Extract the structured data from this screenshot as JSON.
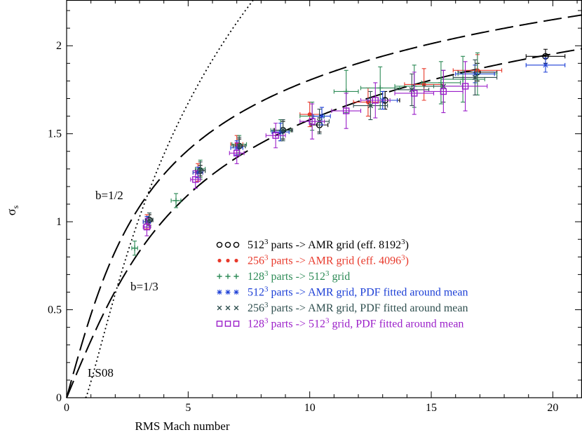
{
  "chart_data": {
    "type": "scatter",
    "xlabel": "RMS Mach number",
    "ylabel": "σ",
    "ylabel_sub": "s",
    "xlim": [
      0,
      21.2
    ],
    "ylim": [
      0,
      2.26
    ],
    "xticks": [
      0,
      5,
      10,
      15,
      20
    ],
    "yticks": [
      0,
      0.5,
      1,
      1.5,
      2
    ],
    "curves": [
      {
        "name": "b=1/2",
        "label": "b=1/2",
        "b": 0.5,
        "style": "long-dash"
      },
      {
        "name": "b=1/3",
        "label": "b=1/3",
        "b": 0.3333,
        "style": "long-dash"
      },
      {
        "name": "LS08",
        "label": "LS08",
        "style": "dotted"
      }
    ],
    "legend": {
      "placement": "center-right",
      "entries": [
        {
          "marker": "circle",
          "color": "#000000",
          "pre": "512",
          "sup": "3",
          "post": " parts -> AMR grid (eff. 8192",
          "sup2": "3",
          "post2": ")"
        },
        {
          "marker": "dot",
          "color": "#e8392b",
          "pre": "256",
          "sup": "3",
          "post": " parts -> AMR grid (eff. 4096",
          "sup2": "3",
          "post2": ")"
        },
        {
          "marker": "plus",
          "color": "#2e8b57",
          "pre": "128",
          "sup": "3",
          "post": " parts -> 512",
          "sup2": "3",
          "post2": " grid"
        },
        {
          "marker": "asterisk",
          "color": "#1c3fd6",
          "pre": "512",
          "sup": "3",
          "post": " parts -> AMR grid, PDF fitted around mean",
          "sup2": "",
          "post2": ""
        },
        {
          "marker": "cross",
          "color": "#2f4f4f",
          "pre": "256",
          "sup": "3",
          "post": " parts -> AMR grid, PDF fitted around mean",
          "sup2": "",
          "post2": ""
        },
        {
          "marker": "square",
          "color": "#9b1fc9",
          "pre": "128",
          "sup": "3",
          "post": " parts -> 512",
          "sup2": "3",
          "post2": " grid, PDF fitted around mean"
        }
      ]
    },
    "series": [
      {
        "name": "512^3 parts -> AMR grid (eff. 8192^3)",
        "marker": "circle",
        "color": "#000000",
        "points": [
          {
            "x": 3.4,
            "y": 1.01,
            "xerr": 0.15,
            "yerr": 0.03
          },
          {
            "x": 5.5,
            "y": 1.29,
            "xerr": 0.2,
            "yerr": 0.03
          },
          {
            "x": 7.1,
            "y": 1.43,
            "xerr": 0.25,
            "yerr": 0.04
          },
          {
            "x": 8.9,
            "y": 1.52,
            "xerr": 0.35,
            "yerr": 0.05
          },
          {
            "x": 10.4,
            "y": 1.55,
            "xerr": 0.35,
            "yerr": 0.04
          },
          {
            "x": 13.1,
            "y": 1.69,
            "xerr": 0.6,
            "yerr": 0.05
          },
          {
            "x": 16.9,
            "y": 1.85,
            "xerr": 0.8,
            "yerr": 0.05
          },
          {
            "x": 19.7,
            "y": 1.94,
            "xerr": 0.8,
            "yerr": 0.04
          }
        ]
      },
      {
        "name": "256^3 parts -> AMR grid (eff. 4096^3)",
        "marker": "dot",
        "color": "#e8392b",
        "points": [
          {
            "x": 3.3,
            "y": 1.0,
            "xerr": 0.15,
            "yerr": 0.04
          },
          {
            "x": 5.4,
            "y": 1.28,
            "xerr": 0.2,
            "yerr": 0.05
          },
          {
            "x": 7.0,
            "y": 1.44,
            "xerr": 0.25,
            "yerr": 0.05
          },
          {
            "x": 10.0,
            "y": 1.61,
            "xerr": 0.4,
            "yerr": 0.07
          },
          {
            "x": 12.4,
            "y": 1.68,
            "xerr": 0.6,
            "yerr": 0.08
          },
          {
            "x": 14.7,
            "y": 1.78,
            "xerr": 0.8,
            "yerr": 0.09
          },
          {
            "x": 16.9,
            "y": 1.86,
            "xerr": 1.0,
            "yerr": 0.09
          }
        ]
      },
      {
        "name": "128^3 parts -> 512^3 grid",
        "marker": "plus",
        "color": "#2e8b57",
        "points": [
          {
            "x": 2.8,
            "y": 0.85,
            "xerr": 0.12,
            "yerr": 0.04
          },
          {
            "x": 4.5,
            "y": 1.12,
            "xerr": 0.2,
            "yerr": 0.04
          },
          {
            "x": 5.5,
            "y": 1.3,
            "xerr": 0.2,
            "yerr": 0.05
          },
          {
            "x": 7.1,
            "y": 1.44,
            "xerr": 0.3,
            "yerr": 0.05
          },
          {
            "x": 8.8,
            "y": 1.52,
            "xerr": 0.4,
            "yerr": 0.06
          },
          {
            "x": 10.1,
            "y": 1.6,
            "xerr": 0.5,
            "yerr": 0.08
          },
          {
            "x": 11.5,
            "y": 1.74,
            "xerr": 0.5,
            "yerr": 0.12
          },
          {
            "x": 12.9,
            "y": 1.76,
            "xerr": 0.8,
            "yerr": 0.12
          },
          {
            "x": 14.3,
            "y": 1.77,
            "xerr": 0.8,
            "yerr": 0.12
          },
          {
            "x": 15.4,
            "y": 1.79,
            "xerr": 0.8,
            "yerr": 0.12
          },
          {
            "x": 16.3,
            "y": 1.81,
            "xerr": 0.9,
            "yerr": 0.13
          },
          {
            "x": 16.9,
            "y": 1.84,
            "xerr": 0.8,
            "yerr": 0.12
          }
        ]
      },
      {
        "name": "512^3 parts -> AMR grid, PDF fitted around mean",
        "marker": "asterisk",
        "color": "#1c3fd6",
        "points": [
          {
            "x": 3.3,
            "y": 1.0,
            "xerr": 0.15,
            "yerr": 0.03
          },
          {
            "x": 5.4,
            "y": 1.28,
            "xerr": 0.2,
            "yerr": 0.03
          },
          {
            "x": 7.0,
            "y": 1.42,
            "xerr": 0.25,
            "yerr": 0.04
          },
          {
            "x": 8.8,
            "y": 1.51,
            "xerr": 0.35,
            "yerr": 0.05
          },
          {
            "x": 10.5,
            "y": 1.6,
            "xerr": 0.35,
            "yerr": 0.05
          },
          {
            "x": 13.0,
            "y": 1.69,
            "xerr": 0.6,
            "yerr": 0.05
          },
          {
            "x": 16.8,
            "y": 1.84,
            "xerr": 0.8,
            "yerr": 0.05
          },
          {
            "x": 19.7,
            "y": 1.89,
            "xerr": 0.8,
            "yerr": 0.04
          }
        ]
      },
      {
        "name": "256^3 parts -> AMR grid, PDF fitted around mean",
        "marker": "cross",
        "color": "#2f4f4f",
        "points": [
          {
            "x": 3.4,
            "y": 1.01,
            "xerr": 0.15,
            "yerr": 0.04
          },
          {
            "x": 5.5,
            "y": 1.29,
            "xerr": 0.2,
            "yerr": 0.05
          },
          {
            "x": 7.1,
            "y": 1.43,
            "xerr": 0.25,
            "yerr": 0.05
          },
          {
            "x": 8.9,
            "y": 1.52,
            "xerr": 0.4,
            "yerr": 0.06
          },
          {
            "x": 10.4,
            "y": 1.57,
            "xerr": 0.4,
            "yerr": 0.07
          },
          {
            "x": 12.5,
            "y": 1.66,
            "xerr": 0.7,
            "yerr": 0.08
          },
          {
            "x": 14.2,
            "y": 1.75,
            "xerr": 0.7,
            "yerr": 0.09
          },
          {
            "x": 15.5,
            "y": 1.77,
            "xerr": 0.8,
            "yerr": 0.09
          },
          {
            "x": 16.8,
            "y": 1.82,
            "xerr": 0.9,
            "yerr": 0.1
          }
        ]
      },
      {
        "name": "128^3 parts -> 512^3 grid, PDF fitted around mean",
        "marker": "square",
        "color": "#9b1fc9",
        "points": [
          {
            "x": 3.3,
            "y": 0.97,
            "xerr": 0.15,
            "yerr": 0.05
          },
          {
            "x": 5.3,
            "y": 1.24,
            "xerr": 0.2,
            "yerr": 0.05
          },
          {
            "x": 7.0,
            "y": 1.39,
            "xerr": 0.3,
            "yerr": 0.06
          },
          {
            "x": 8.6,
            "y": 1.49,
            "xerr": 0.4,
            "yerr": 0.07
          },
          {
            "x": 10.1,
            "y": 1.57,
            "xerr": 0.5,
            "yerr": 0.1
          },
          {
            "x": 11.5,
            "y": 1.63,
            "xerr": 0.6,
            "yerr": 0.1
          },
          {
            "x": 12.7,
            "y": 1.69,
            "xerr": 0.6,
            "yerr": 0.1
          },
          {
            "x": 14.3,
            "y": 1.73,
            "xerr": 0.8,
            "yerr": 0.12
          },
          {
            "x": 15.5,
            "y": 1.74,
            "xerr": 0.8,
            "yerr": 0.12
          },
          {
            "x": 16.4,
            "y": 1.77,
            "xerr": 0.9,
            "yerr": 0.14
          }
        ]
      }
    ]
  }
}
